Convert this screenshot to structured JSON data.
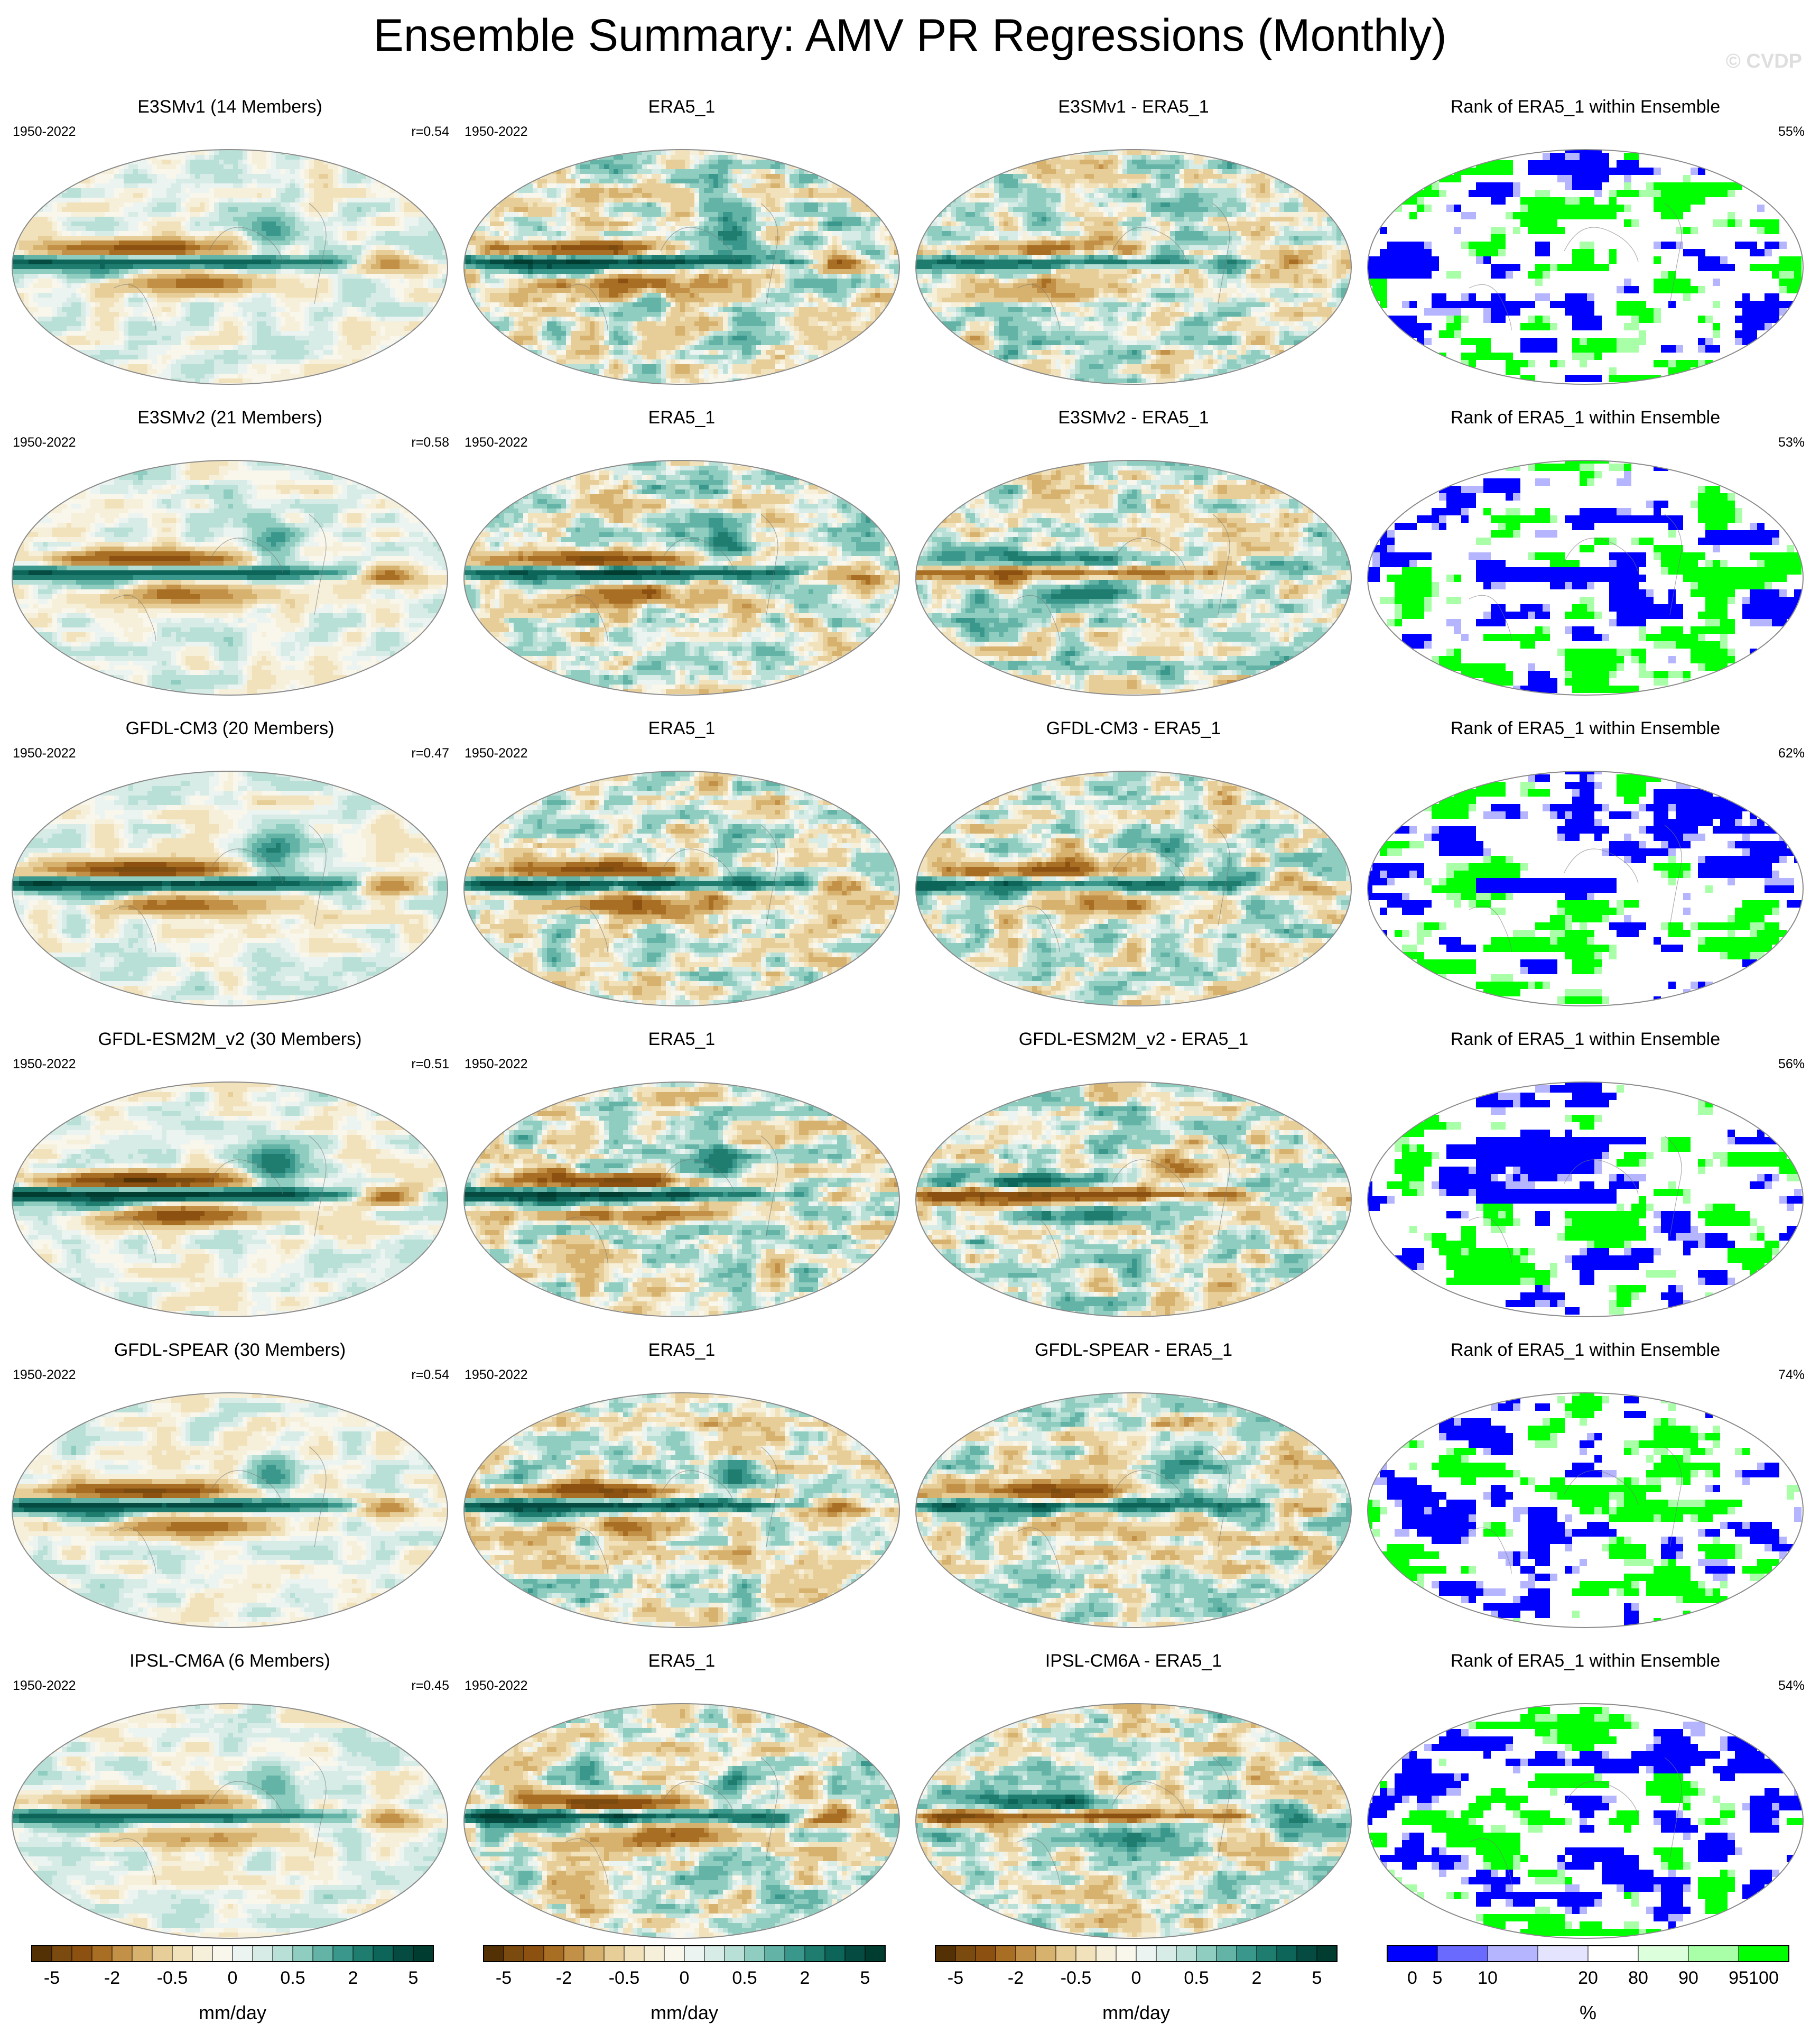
{
  "title": "Ensemble Summary: AMV PR Regressions (Monthly)",
  "watermark": "© CVDP",
  "period": "1950-2022",
  "obs_title": "ERA5_1",
  "rank_title": "Rank of ERA5_1 within Ensemble",
  "rows": [
    {
      "model_title": "E3SMv1 (14 Members)",
      "r": "r=0.54",
      "diff_title": "E3SMv1 - ERA5_1",
      "rank_pct": "55%"
    },
    {
      "model_title": "E3SMv2 (21 Members)",
      "r": "r=0.58",
      "diff_title": "E3SMv2 - ERA5_1",
      "rank_pct": "53%"
    },
    {
      "model_title": "GFDL-CM3 (20 Members)",
      "r": "r=0.47",
      "diff_title": "GFDL-CM3 - ERA5_1",
      "rank_pct": "62%"
    },
    {
      "model_title": "GFDL-ESM2M_v2 (30 Members)",
      "r": "r=0.51",
      "diff_title": "GFDL-ESM2M_v2 - ERA5_1",
      "rank_pct": "56%"
    },
    {
      "model_title": "GFDL-SPEAR (30 Members)",
      "r": "r=0.54",
      "diff_title": "GFDL-SPEAR - ERA5_1",
      "rank_pct": "74%"
    },
    {
      "model_title": "IPSL-CM6A (6 Members)",
      "r": "r=0.45",
      "diff_title": "IPSL-CM6A - ERA5_1",
      "rank_pct": "54%"
    }
  ],
  "chart_data": {
    "type": "heatmap",
    "projection": "Mollweide global maps",
    "layout": "6 rows x 4 columns",
    "pr_colorbar": {
      "unit": "mm/day",
      "tick_labels": [
        "-5",
        "-2",
        "-0.5",
        "0",
        "0.5",
        "2",
        "5"
      ],
      "tick_positions": [
        1,
        4,
        7,
        10,
        13,
        16,
        19
      ],
      "colors": [
        "#543005",
        "#7a4a0e",
        "#8c5110",
        "#a86e24",
        "#c29046",
        "#d6b26e",
        "#e7ce98",
        "#f1e2bb",
        "#f6efd9",
        "#f9f6ec",
        "#ecf4f1",
        "#d7ece7",
        "#b9e0d7",
        "#8fcdc0",
        "#63b3a6",
        "#3a978b",
        "#1f7d70",
        "#0d6459",
        "#054b41",
        "#003c30"
      ]
    },
    "rank_colorbar": {
      "unit": "%",
      "tick_labels": [
        "0",
        "5",
        "10",
        "20",
        "80",
        "90",
        "95",
        "100"
      ],
      "tick_positions": [
        0.5,
        1,
        2,
        4,
        5,
        6,
        7,
        7.5
      ],
      "colors": [
        "#0000ff",
        "#6a6aff",
        "#b4b4ff",
        "#e4e4ff",
        "#ffffff",
        "#dcffdc",
        "#a8ffa8",
        "#00ff00"
      ]
    }
  }
}
